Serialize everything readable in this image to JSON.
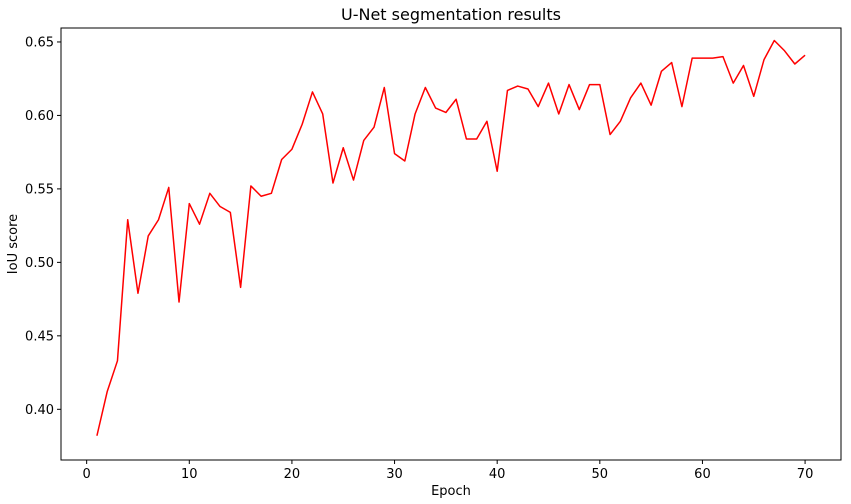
{
  "chart_data": {
    "type": "line",
    "title": "U-Net segmentation results",
    "xlabel": "Epoch",
    "ylabel": "IoU score",
    "xlim": [
      -2.5,
      73.5
    ],
    "ylim": [
      0.3655,
      0.6595
    ],
    "xticks": [
      0,
      10,
      20,
      30,
      40,
      50,
      60,
      70
    ],
    "yticks": [
      0.4,
      0.45,
      0.5,
      0.55,
      0.6,
      0.65
    ],
    "ytick_labels": [
      "0.40",
      "0.45",
      "0.50",
      "0.55",
      "0.60",
      "0.65"
    ],
    "grid": false,
    "legend": "none",
    "series": [
      {
        "color": "#ff0000",
        "x": [
          1,
          2,
          3,
          4,
          5,
          6,
          7,
          8,
          9,
          10,
          11,
          12,
          13,
          14,
          15,
          16,
          17,
          18,
          19,
          20,
          21,
          22,
          23,
          24,
          25,
          26,
          27,
          28,
          29,
          30,
          31,
          32,
          33,
          34,
          35,
          36,
          37,
          38,
          39,
          40,
          41,
          42,
          43,
          44,
          45,
          46,
          47,
          48,
          49,
          50,
          51,
          52,
          53,
          54,
          55,
          56,
          57,
          58,
          59,
          60,
          61,
          62,
          63,
          64,
          65,
          66,
          67,
          68,
          69,
          70
        ],
        "values": [
          0.382,
          0.412,
          0.433,
          0.529,
          0.479,
          0.518,
          0.529,
          0.551,
          0.473,
          0.54,
          0.526,
          0.547,
          0.538,
          0.534,
          0.483,
          0.552,
          0.545,
          0.547,
          0.57,
          0.577,
          0.594,
          0.616,
          0.601,
          0.554,
          0.578,
          0.556,
          0.583,
          0.592,
          0.619,
          0.574,
          0.569,
          0.601,
          0.619,
          0.605,
          0.602,
          0.611,
          0.584,
          0.584,
          0.596,
          0.562,
          0.617,
          0.62,
          0.618,
          0.606,
          0.622,
          0.601,
          0.621,
          0.604,
          0.621,
          0.621,
          0.587,
          0.596,
          0.612,
          0.622,
          0.607,
          0.63,
          0.636,
          0.606,
          0.639,
          0.639,
          0.639,
          0.64,
          0.622,
          0.634,
          0.613,
          0.638,
          0.651,
          0.644,
          0.635,
          0.641
        ]
      }
    ]
  }
}
